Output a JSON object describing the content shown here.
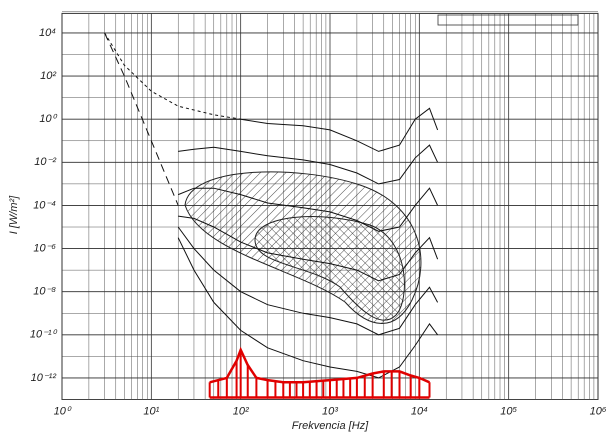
{
  "chart_data": {
    "type": "line",
    "x_label": "Frekvencia [Hz]",
    "y_label": "I  [W/m²]",
    "xscale": "log",
    "yscale": "log",
    "grid": true,
    "xlim": [
      1,
      1000000
    ],
    "ylim": [
      1e-13,
      100000
    ],
    "xticks": [
      {
        "value": 1,
        "label": "10⁰"
      },
      {
        "value": 10,
        "label": "10¹"
      },
      {
        "value": 100,
        "label": "10²"
      },
      {
        "value": 1000,
        "label": "10³"
      },
      {
        "value": 10000,
        "label": "10⁴"
      },
      {
        "value": 100000,
        "label": "10⁵"
      },
      {
        "value": 1000000,
        "label": "10⁶"
      }
    ],
    "yticks": [
      {
        "value": 10000,
        "label": "10⁴"
      },
      {
        "value": 100,
        "label": "10²"
      },
      {
        "value": 1,
        "label": "10⁰"
      },
      {
        "value": 0.01,
        "label": "10⁻²"
      },
      {
        "value": 0.0001,
        "label": "10⁻⁴"
      },
      {
        "value": 1e-06,
        "label": "10⁻⁶"
      },
      {
        "value": 1e-08,
        "label": "10⁻⁸"
      },
      {
        "value": 1e-10,
        "label": "10⁻¹⁰"
      },
      {
        "value": 1e-12,
        "label": "10⁻¹²"
      }
    ],
    "series": [
      {
        "color": "#111111",
        "x": [
          20,
          30,
          50,
          100,
          200,
          500,
          1000,
          2000,
          3500,
          6000,
          9000,
          13000,
          16000
        ],
        "values": [
          1,
          1,
          1,
          1,
          0.63,
          0.5,
          0.32,
          0.1,
          0.032,
          0.063,
          1,
          3.2,
          0.32
        ]
      },
      {
        "color": "#111111",
        "x": [
          20,
          30,
          50,
          100,
          200,
          500,
          1000,
          2000,
          3500,
          6000,
          9000,
          13000,
          16000
        ],
        "values": [
          0.032,
          0.04,
          0.05,
          0.032,
          0.02,
          0.013,
          0.0079,
          0.0032,
          0.001,
          0.0016,
          0.016,
          0.063,
          0.01
        ]
      },
      {
        "color": "#111111",
        "x": [
          20,
          30,
          50,
          100,
          200,
          500,
          1000,
          2000,
          3500,
          6000,
          9000,
          13000,
          16000
        ],
        "values": [
          0.00032,
          0.00063,
          0.00063,
          0.00032,
          0.00013,
          7.9e-05,
          5e-05,
          2e-05,
          6.3e-06,
          1e-05,
          0.0001,
          0.00063,
          0.0001
        ]
      },
      {
        "color": "#111111",
        "x": [
          20,
          30,
          50,
          100,
          200,
          500,
          1000,
          2000,
          3500,
          6000,
          9000,
          13000,
          16000
        ],
        "values": [
          3.2e-05,
          2.5e-05,
          1e-05,
          2e-06,
          6.3e-07,
          3.2e-07,
          2e-07,
          1e-07,
          3.2e-08,
          6.3e-08,
          6.3e-07,
          3.2e-06,
          3.2e-07
        ]
      },
      {
        "color": "#111111",
        "x": [
          20,
          30,
          50,
          100,
          200,
          500,
          1000,
          2000,
          3500,
          6000,
          9000,
          13000,
          16000
        ],
        "values": [
          1e-05,
          1e-06,
          1e-07,
          1e-08,
          2.5e-09,
          1e-09,
          6.3e-10,
          3.2e-10,
          1e-10,
          2e-10,
          2.5e-09,
          1.6e-08,
          3.2e-09
        ]
      },
      {
        "color": "#111111",
        "x": [
          20,
          30,
          50,
          100,
          200,
          500,
          1000,
          2000,
          3500,
          6000,
          9000,
          13000,
          16000
        ],
        "values": [
          3.2e-06,
          1e-07,
          3.2e-09,
          1.6e-10,
          2.5e-11,
          6.3e-12,
          3.2e-12,
          2e-12,
          1e-12,
          3.2e-12,
          3.2e-11,
          3.2e-10,
          1e-10
        ]
      },
      {
        "color": "#111111",
        "dash": "long",
        "x": [
          3,
          5,
          10,
          20
        ],
        "values": [
          10000,
          100,
          0.1,
          0.0001
        ]
      },
      {
        "color": "#111111",
        "dash": "short",
        "x": [
          3,
          5,
          10,
          20,
          50,
          100
        ],
        "values": [
          10000,
          316,
          20,
          4,
          1.6,
          1
        ]
      },
      {
        "color": "#e00000",
        "fill": "hatch",
        "x": [
          45,
          70,
          90,
          100,
          120,
          150,
          200,
          300,
          500,
          1000,
          2000,
          3000,
          4000,
          6000,
          8000,
          10000,
          13000
        ],
        "values": [
          6.3e-13,
          1e-12,
          6.3e-12,
          2e-11,
          4e-12,
          1e-12,
          7.9e-13,
          6.3e-13,
          6.3e-13,
          7.9e-13,
          1e-12,
          1.6e-12,
          2e-12,
          2e-12,
          1.3e-12,
          1e-12,
          6.3e-13
        ]
      }
    ]
  }
}
